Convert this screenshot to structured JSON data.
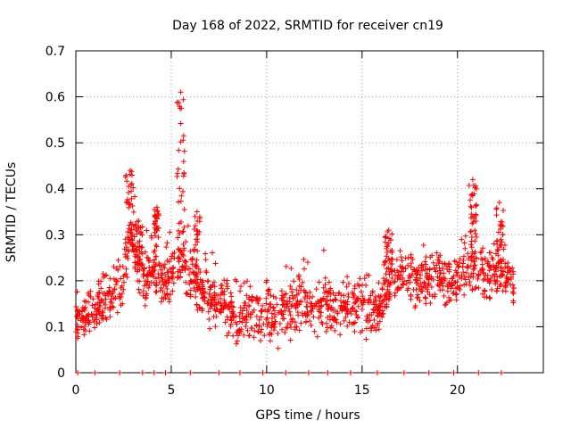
{
  "chart_data": {
    "type": "scatter",
    "title": "Day 168 of 2022, SRMTID for receiver cn19",
    "xlabel": "GPS time / hours",
    "ylabel": "SRMTID / TECUs",
    "xlim": [
      0,
      24.5
    ],
    "ylim": [
      0,
      0.7
    ],
    "xticks": [
      0,
      5,
      10,
      15,
      20
    ],
    "yticks": [
      0,
      0.1,
      0.2,
      0.3,
      0.4,
      0.5,
      0.6,
      0.7
    ],
    "grid": true,
    "marker": "+",
    "color": "#ff0000",
    "series": [
      {
        "name": "SRMTID",
        "profile": [
          [
            0.0,
            0.11
          ],
          [
            0.5,
            0.12
          ],
          [
            1.0,
            0.13
          ],
          [
            1.5,
            0.16
          ],
          [
            2.0,
            0.17
          ],
          [
            2.5,
            0.2
          ],
          [
            2.8,
            0.3
          ],
          [
            3.0,
            0.26
          ],
          [
            3.5,
            0.2
          ],
          [
            4.0,
            0.22
          ],
          [
            4.5,
            0.2
          ],
          [
            5.0,
            0.21
          ],
          [
            5.3,
            0.23
          ],
          [
            5.6,
            0.25
          ],
          [
            6.0,
            0.2
          ],
          [
            6.5,
            0.18
          ],
          [
            7.0,
            0.16
          ],
          [
            7.5,
            0.15
          ],
          [
            8.0,
            0.13
          ],
          [
            8.5,
            0.12
          ],
          [
            9.0,
            0.14
          ],
          [
            9.5,
            0.12
          ],
          [
            10.0,
            0.13
          ],
          [
            10.5,
            0.12
          ],
          [
            11.0,
            0.13
          ],
          [
            11.5,
            0.14
          ],
          [
            12.0,
            0.15
          ],
          [
            12.5,
            0.13
          ],
          [
            13.0,
            0.15
          ],
          [
            13.5,
            0.14
          ],
          [
            14.0,
            0.15
          ],
          [
            14.5,
            0.14
          ],
          [
            15.0,
            0.15
          ],
          [
            15.5,
            0.13
          ],
          [
            16.0,
            0.15
          ],
          [
            16.5,
            0.2
          ],
          [
            17.0,
            0.22
          ],
          [
            17.5,
            0.21
          ],
          [
            18.0,
            0.2
          ],
          [
            18.5,
            0.2
          ],
          [
            19.0,
            0.21
          ],
          [
            19.5,
            0.2
          ],
          [
            20.0,
            0.2
          ],
          [
            20.5,
            0.22
          ],
          [
            21.0,
            0.24
          ],
          [
            21.5,
            0.2
          ],
          [
            22.0,
            0.22
          ],
          [
            22.5,
            0.2
          ],
          [
            22.9,
            0.2
          ]
        ],
        "spikes": [
          {
            "x": [
              2.6,
              3.1
            ],
            "peak": 0.44
          },
          {
            "x": [
              5.3,
              5.7
            ],
            "peak": 0.61
          },
          {
            "x": [
              6.2,
              6.5
            ],
            "peak": 0.35
          },
          {
            "x": [
              20.6,
              21.0
            ],
            "peak": 0.42
          },
          {
            "x": [
              22.0,
              22.4
            ],
            "peak": 0.37
          },
          {
            "x": [
              16.2,
              16.6
            ],
            "peak": 0.31
          },
          {
            "x": [
              4.1,
              4.4
            ],
            "peak": 0.36
          },
          {
            "x": [
              3.1,
              3.5
            ],
            "peak": 0.33
          }
        ],
        "scatter_spread": 0.05,
        "n_points": 1500,
        "x_range": [
          0,
          23.0
        ]
      },
      {
        "name": "zero markers",
        "x": [
          0.1,
          1.0,
          2.3,
          3.5,
          4.1,
          4.7,
          6.0,
          7.5,
          8.6,
          9.8,
          11.0,
          12.2,
          13.2,
          14.4,
          15.8,
          17.2,
          18.5,
          19.8,
          21.1,
          22.3
        ],
        "y": [
          0,
          0,
          0,
          0,
          0,
          0,
          0,
          0,
          0,
          0,
          0,
          0,
          0,
          0,
          0,
          0,
          0,
          0,
          0,
          0
        ]
      }
    ]
  }
}
